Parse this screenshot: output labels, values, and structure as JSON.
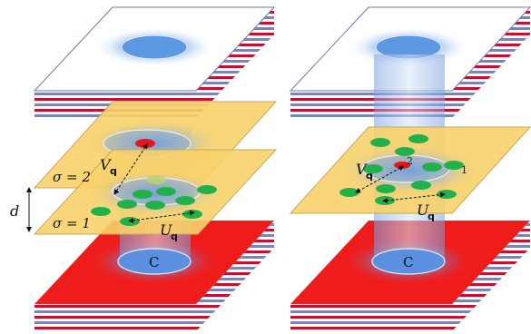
{
  "left_panel": {
    "sigma_top_label": "σ = 2",
    "sigma_bottom_label": "σ = 1",
    "spacing_label": "d",
    "interlayer_label": "V",
    "interlayer_sub": "q",
    "intralayer_label": "U",
    "intralayer_sub": "q",
    "substrate_label": "C"
  },
  "right_panel": {
    "interlayer_label": "V",
    "interlayer_sub": "q",
    "intralayer_label": "U",
    "intralayer_sub": "q",
    "site_label_2": "2",
    "site_label_1": "1",
    "substrate_label": "C"
  },
  "colors": {
    "layer_sheet": "#f7d26a",
    "substrate_top": "#ef1c1c",
    "substrate_stripe_red": "#c8102e",
    "substrate_stripe_white": "#ffffff",
    "substrate_stripe_blue": "#7b86b8",
    "dot_green": "#22b04a",
    "dot_red": "#e8141a",
    "glow_blue": "#4a8ee0",
    "column_blue": "#9fb6e6"
  }
}
